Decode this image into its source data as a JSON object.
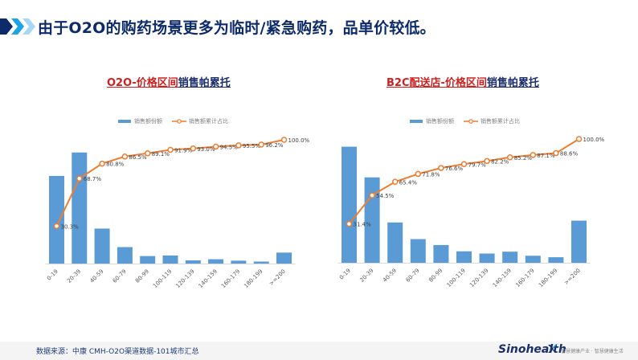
{
  "header": {
    "title": "由于O2O的购药场景更多为临时/紧急购药，品单价较低。",
    "chevron_colors": [
      "#0d2b6b",
      "#1aa3e8",
      "#a9d8f5"
    ]
  },
  "charts": [
    {
      "title_red": "O2O-价格区间",
      "title_blue": "销售帕累托",
      "legend": {
        "bar": "销售额份额",
        "line": "销售额累计占比"
      }
    },
    {
      "title_red": "B2C配送店-价格区间",
      "title_blue": "销售帕累托",
      "legend": {
        "bar": "销售额份额",
        "line": "销售额累计占比"
      }
    }
  ],
  "footer": {
    "source": "数据来源：中康 CMH-O2O渠道数据-101城市汇总",
    "brand": "Sinohealth",
    "slogan": "智慧健康产业 · 智慧健康生活"
  },
  "chart_data": [
    {
      "type": "bar+line",
      "title": "O2O-价格区间销售帕累托",
      "categories": [
        "0-19",
        "20-39",
        "40-59",
        "60-79",
        "80-99",
        "100-119",
        "120-139",
        "140-159",
        "160-179",
        "180-199",
        ">=200"
      ],
      "series": [
        {
          "name": "销售额份额",
          "type": "bar",
          "values": [
            30.3,
            38.4,
            12.1,
            5.7,
            2.6,
            2.8,
            1.1,
            1.5,
            1.0,
            0.7,
            3.8
          ]
        },
        {
          "name": "销售额累计占比",
          "type": "line",
          "values": [
            30.3,
            68.7,
            80.8,
            86.5,
            89.1,
            91.9,
            93.0,
            94.5,
            95.5,
            96.2,
            100.0
          ],
          "labels": [
            "30.3%",
            "68.7%",
            "80.8%",
            "86.5%",
            "89.1%",
            "91.9%",
            "93.0%",
            "94.5%",
            "95.5%",
            "96.2%",
            "100.0%"
          ]
        }
      ],
      "colors": {
        "bar": "#5b9bd5",
        "line": "#ed7d31"
      },
      "ylim": [
        0,
        100
      ],
      "legend_position": "top"
    },
    {
      "type": "bar+line",
      "title": "B2C配送店-价格区间销售帕累托",
      "categories": [
        "0-19",
        "20-39",
        "40-59",
        "60-79",
        "80-99",
        "100-119",
        "120-139",
        "140-159",
        "160-179",
        "180-199",
        ">=200"
      ],
      "series": [
        {
          "name": "销售额份额",
          "type": "bar",
          "values": [
            31.4,
            23.1,
            10.9,
            6.4,
            4.8,
            3.1,
            2.5,
            3.0,
            1.9,
            1.5,
            11.4
          ]
        },
        {
          "name": "销售额累计占比",
          "type": "line",
          "values": [
            31.4,
            54.5,
            65.4,
            71.8,
            76.6,
            79.7,
            82.2,
            85.2,
            87.1,
            88.6,
            100.0
          ],
          "labels": [
            "31.4%",
            "54.5%",
            "65.4%",
            "71.8%",
            "76.6%",
            "79.7%",
            "82.2%",
            "85.2%",
            "87.1%",
            "88.6%",
            "100.0%"
          ]
        }
      ],
      "colors": {
        "bar": "#5b9bd5",
        "line": "#ed7d31"
      },
      "ylim": [
        0,
        100
      ],
      "legend_position": "top"
    }
  ]
}
